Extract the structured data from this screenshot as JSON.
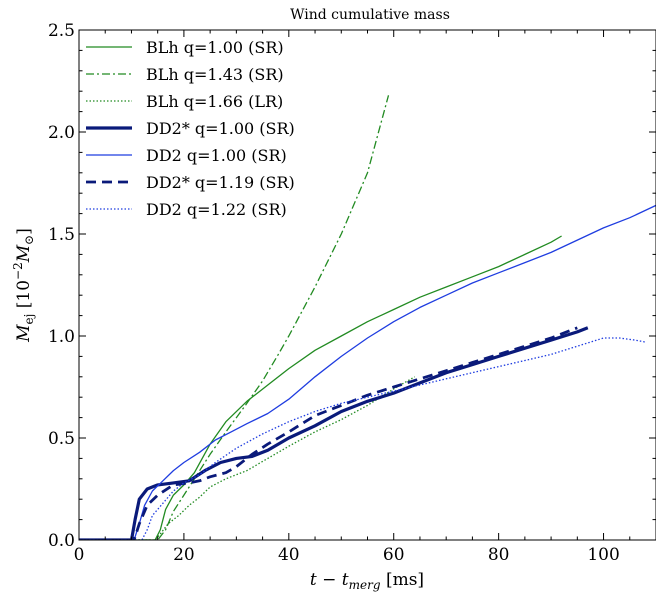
{
  "chart_data": {
    "type": "line",
    "title": "Wind cumulative mass",
    "xlabel": "t − t",
    "xlabel_sub": "merg",
    "xlabel_unit": " [ms]",
    "ylabel": "M",
    "ylabel_sub": "ej",
    "ylabel_unit": " [10",
    "ylabel_exp": "−2",
    "ylabel_tail": "M",
    "ylabel_tail_sub": "⊙",
    "ylabel_close": "]",
    "xlim": [
      0,
      110
    ],
    "ylim": [
      0,
      2.5
    ],
    "xticks": [
      0,
      20,
      40,
      60,
      80,
      100
    ],
    "xtick_labels": [
      "0",
      "20",
      "40",
      "60",
      "80",
      "100"
    ],
    "yticks": [
      0.0,
      0.5,
      1.0,
      1.5,
      2.0,
      2.5
    ],
    "ytick_labels": [
      "0.0",
      "0.5",
      "1.0",
      "1.5",
      "2.0",
      "2.5"
    ],
    "grid": false,
    "legend_position": "top-left",
    "series": [
      {
        "name": "BLh q=1.00 (SR)",
        "color": "#228B22",
        "width": 1.3,
        "dash": "",
        "x": [
          0,
          14.5,
          15.5,
          16.5,
          18,
          20,
          22,
          25,
          28,
          32,
          36,
          40,
          45,
          50,
          55,
          60,
          65,
          70,
          75,
          80,
          85,
          90,
          92
        ],
        "y": [
          0,
          0,
          0.05,
          0.15,
          0.22,
          0.27,
          0.33,
          0.47,
          0.58,
          0.68,
          0.76,
          0.84,
          0.93,
          1.0,
          1.07,
          1.13,
          1.19,
          1.24,
          1.29,
          1.34,
          1.4,
          1.46,
          1.49
        ]
      },
      {
        "name": "BLh q=1.43 (SR)",
        "color": "#228B22",
        "width": 1.3,
        "dash": "8,3,2,3",
        "x": [
          0,
          15,
          16.5,
          18,
          20,
          22,
          25,
          28,
          30,
          32,
          35,
          38,
          40,
          45,
          50,
          55,
          59
        ],
        "y": [
          0,
          0,
          0.05,
          0.14,
          0.22,
          0.3,
          0.42,
          0.53,
          0.6,
          0.67,
          0.78,
          0.91,
          1.0,
          1.24,
          1.5,
          1.8,
          2.18
        ]
      },
      {
        "name": "BLh q=1.66 (LR)",
        "color": "#228B22",
        "width": 1.3,
        "dash": "1.5,2",
        "x": [
          0,
          14.5,
          15.5,
          17,
          19,
          21,
          23,
          25,
          28,
          32,
          36,
          40,
          45,
          50,
          55,
          60,
          64
        ],
        "y": [
          0,
          0,
          0.03,
          0.08,
          0.12,
          0.17,
          0.21,
          0.26,
          0.3,
          0.34,
          0.4,
          0.46,
          0.53,
          0.59,
          0.66,
          0.74,
          0.8
        ]
      },
      {
        "name": "DD2* q=1.00 (SR)",
        "color": "#0a1a7a",
        "width": 3.2,
        "dash": "",
        "x": [
          0,
          10,
          10.7,
          11.5,
          13,
          15,
          18,
          21,
          24,
          27,
          30,
          33,
          36,
          40,
          45,
          50,
          55,
          60,
          65,
          70,
          75,
          80,
          85,
          90,
          95,
          97
        ],
        "y": [
          0,
          0,
          0.1,
          0.2,
          0.25,
          0.27,
          0.28,
          0.29,
          0.34,
          0.38,
          0.4,
          0.41,
          0.44,
          0.5,
          0.56,
          0.63,
          0.68,
          0.72,
          0.77,
          0.82,
          0.86,
          0.9,
          0.94,
          0.98,
          1.02,
          1.04
        ]
      },
      {
        "name": "DD2 q=1.00 (SR)",
        "color": "#1f3de0",
        "width": 1.3,
        "dash": "",
        "x": [
          0,
          10.5,
          11.5,
          12.5,
          14,
          16,
          18,
          20,
          23,
          26,
          29,
          32,
          36,
          40,
          45,
          50,
          55,
          60,
          65,
          70,
          75,
          80,
          85,
          90,
          95,
          100,
          105,
          110
        ],
        "y": [
          0,
          0,
          0.08,
          0.17,
          0.24,
          0.29,
          0.34,
          0.38,
          0.43,
          0.49,
          0.53,
          0.57,
          0.62,
          0.69,
          0.8,
          0.9,
          0.99,
          1.07,
          1.14,
          1.2,
          1.26,
          1.31,
          1.36,
          1.41,
          1.47,
          1.53,
          1.58,
          1.64
        ]
      },
      {
        "name": "DD2* q=1.19 (SR)",
        "color": "#0a1a7a",
        "width": 2.8,
        "dash": "10,6",
        "x": [
          0,
          10.5,
          11.5,
          13,
          15,
          18,
          21,
          23,
          25,
          28,
          30,
          33,
          36,
          40,
          45,
          50,
          55,
          60,
          65,
          70,
          75,
          80,
          85,
          90,
          95
        ],
        "y": [
          0,
          0,
          0.08,
          0.17,
          0.22,
          0.27,
          0.28,
          0.29,
          0.31,
          0.33,
          0.36,
          0.42,
          0.47,
          0.53,
          0.61,
          0.66,
          0.71,
          0.75,
          0.79,
          0.83,
          0.87,
          0.91,
          0.95,
          0.99,
          1.04
        ]
      },
      {
        "name": "DD2 q=1.22 (SR)",
        "color": "#1f3de0",
        "width": 1.3,
        "dash": "1.5,2",
        "x": [
          0,
          12,
          13,
          14,
          16,
          18,
          20,
          23,
          26,
          30,
          35,
          40,
          45,
          50,
          55,
          60,
          65,
          70,
          75,
          80,
          85,
          90,
          95,
          100,
          103,
          106,
          108
        ],
        "y": [
          0,
          0,
          0.05,
          0.12,
          0.18,
          0.24,
          0.28,
          0.32,
          0.38,
          0.45,
          0.52,
          0.58,
          0.63,
          0.67,
          0.7,
          0.73,
          0.76,
          0.79,
          0.82,
          0.85,
          0.88,
          0.91,
          0.95,
          0.99,
          0.99,
          0.98,
          0.97
        ]
      }
    ]
  }
}
